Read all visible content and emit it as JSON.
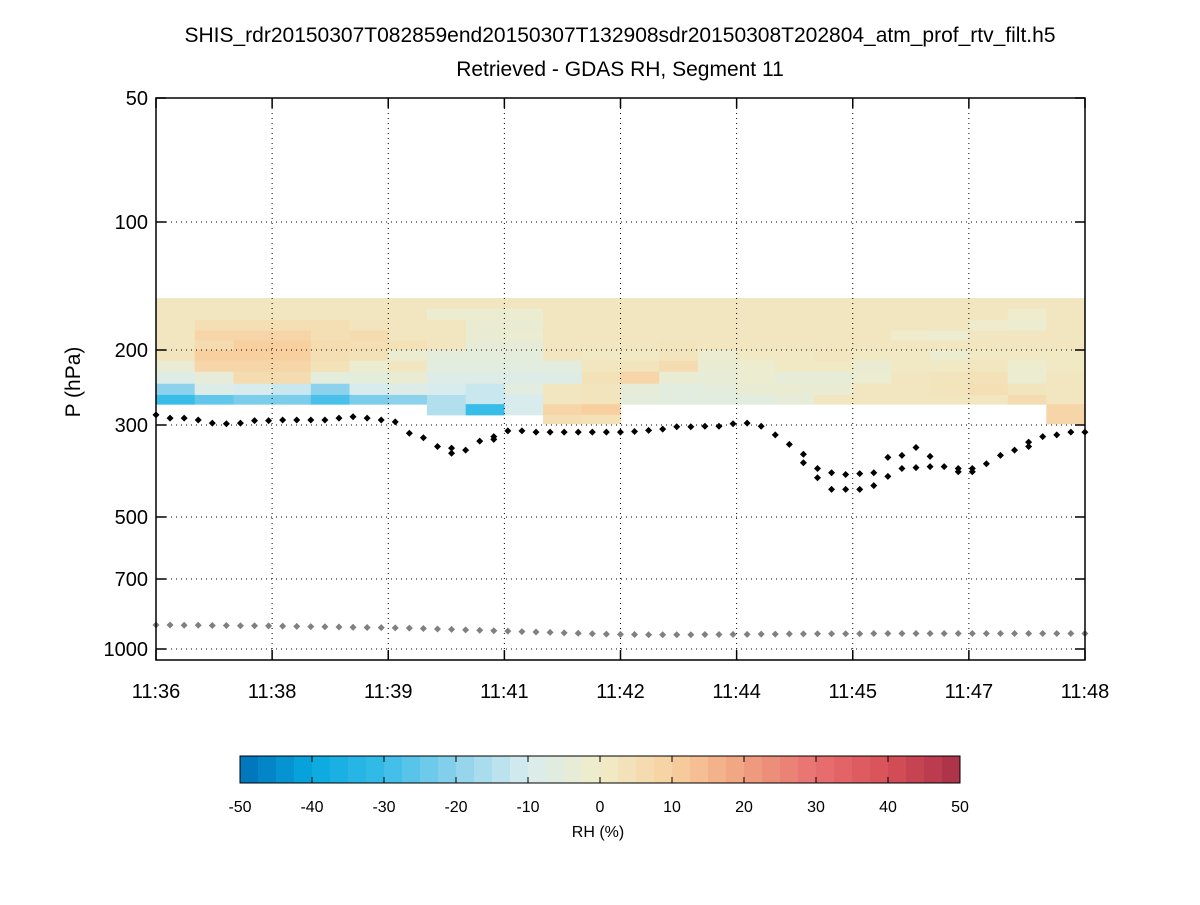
{
  "chart_data": {
    "type": "heatmap",
    "title": "SHIS_rdr20150307T082859end20150307T132908sdr20150308T202804_atm_prof_rtv_filt.h5",
    "subtitle": "Retrieved - GDAS RH, Segment 11",
    "ylabel": "P (hPa)",
    "y_scale": "log",
    "ylim": [
      50,
      1050
    ],
    "y_ticks": [
      50,
      100,
      200,
      300,
      500,
      700,
      1000
    ],
    "y_tick_labels": [
      "50",
      "100",
      "200",
      "300",
      "500",
      "700",
      "1000"
    ],
    "x_units": "minutes after 11:36",
    "xlim": [
      0,
      12
    ],
    "x_ticks": [
      0,
      1.5,
      3,
      4.5,
      6,
      7.5,
      9,
      10.5,
      12
    ],
    "x_tick_labels": [
      "11:36",
      "11:38",
      "11:39",
      "11:41",
      "11:42",
      "11:44",
      "11:45",
      "11:47",
      "11:48"
    ],
    "grid": true,
    "heatmap": {
      "x_edges_step_min": 0.5,
      "p_edges": [
        151,
        160,
        170,
        180,
        190,
        200,
        212,
        225,
        240,
        255,
        268,
        284,
        298
      ],
      "values": [
        [
          2,
          2,
          2,
          2,
          2,
          2,
          2,
          2,
          2,
          2,
          2,
          2,
          2,
          2,
          2,
          2,
          2,
          2,
          2,
          2,
          2,
          2,
          2,
          2
        ],
        [
          2,
          2,
          2,
          2,
          2,
          2,
          2,
          -2,
          -2,
          -2,
          2,
          2,
          2,
          2,
          2,
          2,
          2,
          2,
          2,
          2,
          2,
          2,
          -1,
          2
        ],
        [
          2,
          5,
          5,
          5,
          5,
          3,
          2,
          2,
          -3,
          -3,
          2,
          2,
          2,
          2,
          2,
          2,
          2,
          2,
          2,
          2,
          2,
          -1,
          -2,
          2
        ],
        [
          2,
          8,
          8,
          8,
          5,
          6,
          2,
          2,
          -3,
          -2,
          2,
          2,
          2,
          2,
          2,
          2,
          2,
          2,
          2,
          -1,
          -2,
          2,
          2,
          2
        ],
        [
          2,
          6,
          10,
          10,
          6,
          5,
          4,
          2,
          -4,
          -4,
          2,
          2,
          2,
          3,
          2,
          2,
          2,
          2,
          2,
          2,
          2,
          2,
          2,
          2
        ],
        [
          3,
          10,
          10,
          10,
          5,
          4,
          -2,
          -5,
          -5,
          -5,
          2,
          1,
          1,
          3,
          -2,
          1,
          1,
          2,
          1,
          1,
          -2,
          1,
          1,
          1
        ],
        [
          -3,
          8,
          8,
          8,
          4,
          -2,
          2,
          -6,
          -6,
          -6,
          -6,
          2,
          3,
          6,
          -3,
          -2,
          1,
          1,
          -3,
          1,
          1,
          2,
          -2,
          1
        ],
        [
          -8,
          -4,
          6,
          6,
          -5,
          -5,
          -3,
          -8,
          -8,
          -8,
          -8,
          4,
          8,
          -3,
          -4,
          -2,
          -4,
          -4,
          -2,
          2,
          3,
          4,
          -2,
          2
        ],
        [
          -20,
          -8,
          -10,
          -12,
          -20,
          -10,
          -8,
          -10,
          -12,
          -6,
          2,
          3,
          -4,
          -6,
          -5,
          -3,
          -3,
          -3,
          2,
          2,
          3,
          5,
          3,
          2
        ],
        [
          -30,
          -25,
          -22,
          -22,
          -28,
          -22,
          -20,
          -15,
          -12,
          -10,
          2,
          3,
          -5,
          -6,
          -6,
          -6,
          -4,
          2,
          2,
          2,
          2,
          2,
          6,
          2
        ],
        [
          null,
          null,
          null,
          null,
          null,
          null,
          null,
          -15,
          -30,
          -10,
          8,
          10,
          null,
          null,
          null,
          null,
          null,
          null,
          null,
          null,
          null,
          null,
          null,
          8
        ],
        [
          null,
          null,
          null,
          null,
          null,
          null,
          null,
          null,
          null,
          null,
          5,
          4,
          null,
          null,
          null,
          null,
          null,
          null,
          null,
          null,
          null,
          null,
          null,
          8
        ]
      ]
    },
    "series": [
      {
        "name": "retrieved level",
        "color": "#000000",
        "x_step_min": 0.1818,
        "pressure": [
          284,
          289,
          289,
          292,
          297,
          298,
          297,
          293,
          293,
          292,
          292,
          292,
          292,
          289,
          287,
          289,
          292,
          295,
          314,
          322,
          338,
          341,
          345,
          328,
          320,
          310,
          310,
          312,
          312,
          312,
          312,
          312,
          312,
          312,
          311,
          309,
          307,
          303,
          303,
          302,
          302,
          298,
          297,
          302,
          317,
          334,
          353,
          382,
          391,
          395,
          393,
          391,
          359,
          355,
          340,
          357,
          378,
          382,
          382,
          372,
          355,
          345,
          330,
          320,
          317,
          312,
          312
        ],
        "pressure_2": [
          null,
          null,
          null,
          null,
          null,
          null,
          null,
          null,
          null,
          null,
          null,
          null,
          null,
          null,
          null,
          null,
          null,
          null,
          null,
          null,
          null,
          351,
          null,
          null,
          325,
          null,
          null,
          null,
          null,
          null,
          null,
          null,
          null,
          null,
          null,
          null,
          null,
          null,
          null,
          null,
          null,
          null,
          null,
          null,
          null,
          null,
          370,
          402,
          429,
          429,
          429,
          420,
          399,
          382,
          380,
          378,
          null,
          389,
          389,
          null,
          null,
          null,
          338,
          null,
          null,
          null,
          null
        ]
      },
      {
        "name": "surface level",
        "color": "#808080",
        "x_step_min": 0.1818,
        "pressure": [
          885,
          885,
          886,
          886,
          887,
          887,
          888,
          888,
          889,
          890,
          891,
          892,
          893,
          894,
          895,
          896,
          897,
          898,
          899,
          901,
          903,
          905,
          907,
          909,
          911,
          913,
          915,
          917,
          919,
          921,
          923,
          925,
          927,
          928,
          929,
          930,
          930,
          930,
          930,
          929,
          929,
          928,
          928,
          927,
          927,
          926,
          926,
          925,
          925,
          925,
          925,
          924,
          924,
          924,
          924,
          924,
          924,
          924,
          924,
          924,
          924,
          924,
          924,
          924,
          924,
          924,
          924
        ]
      }
    ],
    "colorbar": {
      "label": "RH (%)",
      "range": [
        -50,
        50
      ],
      "ticks": [
        -50,
        -40,
        -30,
        -20,
        -10,
        0,
        10,
        20,
        30,
        40,
        50
      ],
      "tick_labels": [
        "-50",
        "-40",
        "-30",
        "-20",
        "-10",
        "0",
        "10",
        "20",
        "30",
        "40",
        "50"
      ],
      "color_stops": [
        "#0070b8",
        "#08a8e0",
        "#38bce8",
        "#8cd2ec",
        "#d8ecee",
        "#f0ecc8",
        "#f8d0a0",
        "#f0a080",
        "#e87070",
        "#d85058",
        "#a83048"
      ]
    }
  }
}
